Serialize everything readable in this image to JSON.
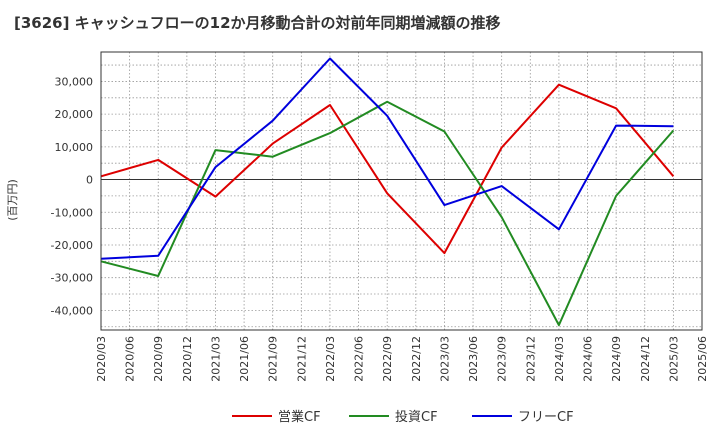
{
  "chart_data": {
    "type": "line",
    "title": "[3626]  キャッシュフローの12か月移動合計の対前年同期増減額の推移",
    "ylabel": "(百万円)",
    "xlabel": "",
    "ylim": [
      -46000,
      39000
    ],
    "yticks": [
      30000,
      20000,
      10000,
      0,
      -10000,
      -20000,
      -30000,
      -40000
    ],
    "ytick_labels": [
      "30,000",
      "20,000",
      "10,000",
      "0",
      "-10,000",
      "-20,000",
      "-30,000",
      "-40,000"
    ],
    "categories": [
      "2020/03",
      "2020/06",
      "2020/09",
      "2020/12",
      "2021/03",
      "2021/06",
      "2021/09",
      "2021/12",
      "2022/03",
      "2022/06",
      "2022/09",
      "2022/12",
      "2023/03",
      "2023/06",
      "2023/09",
      "2023/12",
      "2024/03",
      "2024/06",
      "2024/09",
      "2024/12",
      "2025/03",
      "2025/06"
    ],
    "series": [
      {
        "name": "営業CF",
        "color": "#dd0000",
        "values": [
          1000,
          null,
          6000,
          null,
          -5200,
          null,
          11000,
          null,
          22800,
          null,
          -4200,
          null,
          -22500,
          null,
          9800,
          null,
          29000,
          null,
          21800,
          null,
          1000,
          null
        ]
      },
      {
        "name": "投資CF",
        "color": "#228b22",
        "values": [
          -25000,
          null,
          -29500,
          null,
          9000,
          null,
          7000,
          null,
          14200,
          null,
          23800,
          null,
          14700,
          null,
          -11500,
          null,
          -44500,
          null,
          -5000,
          null,
          15000,
          null
        ]
      },
      {
        "name": "フリーCF",
        "color": "#0000dd",
        "values": [
          -24200,
          null,
          -23300,
          null,
          3800,
          null,
          18000,
          null,
          37000,
          null,
          19500,
          null,
          -7800,
          null,
          -2000,
          null,
          -15200,
          null,
          16500,
          null,
          16300,
          null
        ]
      }
    ],
    "legend_position": "bottom",
    "grid": true
  }
}
